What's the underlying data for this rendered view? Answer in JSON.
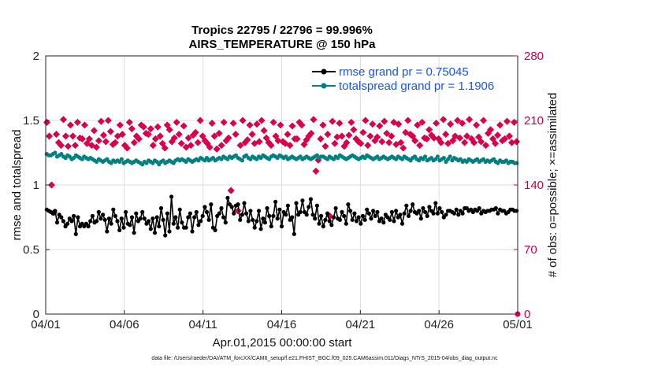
{
  "chart_data": {
    "type": "line",
    "title": "Tropics 22795 / 22796 = 99.996%",
    "subtitle": "AIRS_TEMPERATURE @ 150 hPa",
    "xlabel": "Apr.01,2015 00:00:00 start",
    "ylabel": "rmse and totalspread",
    "ylabel_right": "# of obs: o=possible; ×=assimilated",
    "ylim": [
      0,
      2
    ],
    "ylim_right": [
      0,
      280
    ],
    "xlim": [
      0,
      30
    ],
    "x_tick_values": [
      0,
      5,
      10,
      15,
      20,
      25,
      30
    ],
    "x_tick_labels": [
      "04/01",
      "04/06",
      "04/11",
      "04/16",
      "04/21",
      "04/26",
      "05/01"
    ],
    "y_ticks": [
      "0",
      "0.5",
      "1",
      "1.5",
      "2"
    ],
    "y_ticks_right": [
      "0",
      "70",
      "140",
      "210",
      "280"
    ],
    "legend_position": "top-right",
    "footer": "data file: /Users/raeder/DAI/ATM_forcXX/CAM6_setup/f.e21.FHIST_BGC.f09_025.CAM6assim.011/Diags_NTrS_2015-04/obs_diag_output.nc",
    "colors": {
      "rmse": "#000000",
      "spread": "#008080",
      "obs": "#d9004c",
      "right_axis": "#c8004e",
      "legend_text": "#1a55e6",
      "grid": "#dddddd"
    },
    "series": [
      {
        "name": "rmse grand pr = 0.75045",
        "values": [
          0.81,
          0.8,
          0.79,
          0.78,
          0.8,
          0.71,
          0.77,
          0.75,
          0.72,
          0.68,
          0.7,
          0.74,
          0.72,
          0.76,
          0.62,
          0.75,
          0.68,
          0.7,
          0.68,
          0.7,
          0.68,
          0.72,
          0.76,
          0.71,
          0.72,
          0.79,
          0.74,
          0.77,
          0.73,
          0.64,
          0.74,
          0.7,
          0.81,
          0.76,
          0.72,
          0.65,
          0.74,
          0.67,
          0.79,
          0.7,
          0.69,
          0.75,
          0.63,
          0.78,
          0.72,
          0.74,
          0.79,
          0.74,
          0.7,
          0.72,
          0.66,
          0.74,
          0.63,
          0.75,
          0.68,
          0.82,
          0.73,
          0.61,
          0.78,
          0.64,
          0.91,
          0.7,
          0.75,
          0.67,
          0.81,
          0.71,
          0.67,
          0.67,
          0.75,
          0.78,
          0.64,
          0.75,
          0.79,
          0.69,
          0.72,
          0.76,
          0.83,
          0.79,
          0.73,
          0.85,
          0.67,
          0.65,
          0.76,
          0.78,
          0.82,
          0.75,
          0.71,
          0.9,
          0.85,
          0.83,
          0.78,
          0.84,
          0.85,
          0.73,
          0.77,
          0.86,
          0.78,
          0.72,
          0.8,
          0.73,
          0.67,
          0.72,
          0.8,
          0.66,
          0.74,
          0.71,
          0.82,
          0.76,
          0.68,
          0.76,
          0.87,
          0.74,
          0.81,
          0.68,
          0.79,
          0.77,
          0.84,
          0.73,
          0.75,
          0.62,
          0.86,
          0.77,
          0.79,
          0.88,
          0.79,
          0.77,
          0.83,
          0.89,
          0.77,
          0.74,
          0.84,
          0.7,
          0.76,
          0.68,
          0.73,
          0.78,
          0.72,
          0.69,
          0.75,
          0.82,
          0.74,
          0.73,
          0.79,
          0.76,
          0.7,
          0.85,
          0.8,
          0.73,
          0.78,
          0.72,
          0.75,
          0.7,
          0.76,
          0.73,
          0.81,
          0.78,
          0.74,
          0.8,
          0.76,
          0.79,
          0.72,
          0.74,
          0.71,
          0.77,
          0.75,
          0.73,
          0.79,
          0.72,
          0.8,
          0.75,
          0.77,
          0.7,
          0.78,
          0.84,
          0.76,
          0.8,
          0.85,
          0.79,
          0.78,
          0.8,
          0.74,
          0.82,
          0.79,
          0.76,
          0.83,
          0.8,
          0.78,
          0.86,
          0.78,
          0.82,
          0.79,
          0.75,
          0.77,
          0.8,
          0.8,
          0.79,
          0.78,
          0.81,
          0.77,
          0.8,
          0.78,
          0.82,
          0.82,
          0.8,
          0.81,
          0.79,
          0.81,
          0.8,
          0.82,
          0.78,
          0.8,
          0.79,
          0.8,
          0.8,
          0.81,
          0.81,
          0.82,
          0.78,
          0.81,
          0.8,
          0.8,
          0.78,
          0.79,
          0.81,
          0.81,
          0.8,
          0.8
        ]
      },
      {
        "name": "totalspread grand pr = 1.1906",
        "values": [
          1.24,
          1.23,
          1.23,
          1.24,
          1.25,
          1.22,
          1.23,
          1.24,
          1.22,
          1.21,
          1.23,
          1.22,
          1.2,
          1.21,
          1.23,
          1.22,
          1.21,
          1.2,
          1.22,
          1.21,
          1.2,
          1.21,
          1.2,
          1.19,
          1.18,
          1.2,
          1.19,
          1.18,
          1.19,
          1.2,
          1.18,
          1.17,
          1.19,
          1.18,
          1.19,
          1.18,
          1.2,
          1.17,
          1.18,
          1.19,
          1.18,
          1.17,
          1.18,
          1.19,
          1.18,
          1.17,
          1.16,
          1.18,
          1.17,
          1.19,
          1.18,
          1.17,
          1.19,
          1.18,
          1.16,
          1.18,
          1.19,
          1.17,
          1.18,
          1.19,
          1.18,
          1.17,
          1.19,
          1.2,
          1.19,
          1.2,
          1.19,
          1.18,
          1.2,
          1.19,
          1.18,
          1.19,
          1.2,
          1.19,
          1.21,
          1.2,
          1.19,
          1.21,
          1.19,
          1.2,
          1.21,
          1.19,
          1.2,
          1.21,
          1.2,
          1.22,
          1.21,
          1.2,
          1.22,
          1.21,
          1.22,
          1.23,
          1.21,
          1.2,
          1.19,
          1.22,
          1.23,
          1.21,
          1.2,
          1.22,
          1.21,
          1.2,
          1.22,
          1.21,
          1.23,
          1.22,
          1.21,
          1.2,
          1.22,
          1.23,
          1.22,
          1.21,
          1.23,
          1.22,
          1.21,
          1.22,
          1.2,
          1.21,
          1.22,
          1.21,
          1.2,
          1.21,
          1.22,
          1.2,
          1.21,
          1.22,
          1.21,
          1.2,
          1.21,
          1.22,
          1.23,
          1.21,
          1.22,
          1.22,
          1.21,
          1.2,
          1.22,
          1.21,
          1.2,
          1.22,
          1.21,
          1.23,
          1.22,
          1.21,
          1.2,
          1.21,
          1.22,
          1.23,
          1.22,
          1.21,
          1.2,
          1.21,
          1.22,
          1.21,
          1.23,
          1.22,
          1.21,
          1.2,
          1.21,
          1.22,
          1.2,
          1.21,
          1.22,
          1.21,
          1.2,
          1.21,
          1.22,
          1.21,
          1.2,
          1.22,
          1.21,
          1.2,
          1.22,
          1.21,
          1.2,
          1.19,
          1.21,
          1.22,
          1.2,
          1.19,
          1.21,
          1.2,
          1.22,
          1.19,
          1.2,
          1.21,
          1.19,
          1.2,
          1.22,
          1.19,
          1.2,
          1.21,
          1.18,
          1.2,
          1.22,
          1.19,
          1.21,
          1.2,
          1.19,
          1.2,
          1.18,
          1.19,
          1.18,
          1.2,
          1.19,
          1.18,
          1.19,
          1.2,
          1.18,
          1.19,
          1.2,
          1.18,
          1.19,
          1.18,
          1.19,
          1.2,
          1.18,
          1.17,
          1.19,
          1.18,
          1.18,
          1.19,
          1.17,
          1.18,
          1.18,
          1.17,
          1.17
        ]
      }
    ],
    "obs_counts": [
      208,
      193,
      140,
      110,
      195,
      186,
      183,
      211,
      193,
      182,
      205,
      193,
      183,
      208,
      191,
      190,
      205,
      185,
      190,
      183,
      199,
      181,
      188,
      209,
      194,
      187,
      210,
      198,
      184,
      186,
      193,
      205,
      195,
      183,
      180,
      208,
      201,
      186,
      193,
      190,
      205,
      203,
      196,
      195,
      201,
      183,
      190,
      203,
      193,
      185,
      180,
      205,
      200,
      187,
      191,
      208,
      195,
      185,
      204,
      181,
      191,
      183,
      194,
      197,
      186,
      210,
      193,
      188,
      185,
      181,
      207,
      193,
      179,
      196,
      183,
      208,
      188,
      191,
      134,
      207,
      195,
      112,
      183,
      210,
      186,
      189,
      205,
      195,
      185,
      206,
      187,
      210,
      199,
      191,
      186,
      183,
      208,
      193,
      188,
      205,
      187,
      185,
      195,
      183,
      204,
      190,
      190,
      208,
      205,
      184,
      189,
      193,
      196,
      211,
      155,
      167,
      190,
      205,
      182,
      195,
      106,
      209,
      185,
      192,
      207,
      193,
      182,
      186,
      194,
      208,
      200,
      190,
      187,
      185,
      197,
      210,
      183,
      193,
      206,
      188,
      192,
      204,
      187,
      209,
      196,
      186,
      193,
      208,
      184,
      206,
      186,
      180,
      197,
      210,
      195,
      193,
      188,
      205,
      183,
      208,
      191,
      190,
      200,
      194,
      191,
      207,
      190,
      186,
      211,
      195,
      185,
      206,
      188,
      193,
      210,
      191,
      207,
      186,
      193,
      211,
      190,
      186,
      205,
      192,
      187,
      210,
      183,
      196,
      200,
      190,
      185,
      194,
      205,
      188,
      190,
      209,
      193,
      186,
      208,
      187
    ]
  }
}
